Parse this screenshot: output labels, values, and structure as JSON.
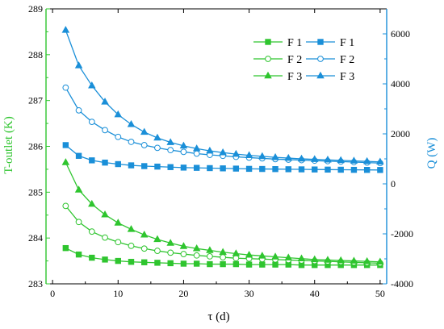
{
  "chart_data": {
    "type": "line",
    "xlabel": "τ (d)",
    "ylabel_left": "T-outlet (K)",
    "ylabel_right": "Q (W)",
    "xlim": [
      -1,
      51
    ],
    "ylim_left": [
      283,
      289
    ],
    "ylim_right": [
      -4000,
      7000
    ],
    "x_ticks": [
      "0",
      "10",
      "20",
      "30",
      "40",
      "50"
    ],
    "y_ticks_left": [
      "283",
      "284",
      "285",
      "286",
      "287",
      "288",
      "289"
    ],
    "y_ticks_right": [
      "-4000",
      "-2000",
      "0",
      "2000",
      "4000",
      "6000"
    ],
    "x_ticks_values": [
      0,
      10,
      20,
      30,
      40,
      50
    ],
    "y_ticks_left_values": [
      283,
      284,
      285,
      286,
      287,
      288,
      289
    ],
    "y_ticks_right_values": [
      -4000,
      -2000,
      0,
      2000,
      4000,
      6000
    ],
    "legend_position": "top-right",
    "colors": {
      "left_axis": "#2fc52f",
      "right_axis": "#1a8fd8"
    },
    "x": [
      2,
      4,
      6,
      8,
      10,
      12,
      14,
      16,
      18,
      20,
      22,
      24,
      26,
      28,
      30,
      32,
      34,
      36,
      38,
      40,
      42,
      44,
      46,
      48,
      50
    ],
    "series": [
      {
        "name": "F 1",
        "axis": "left",
        "marker": "square",
        "filled": true,
        "values": [
          283.78,
          283.64,
          283.57,
          283.53,
          283.5,
          283.48,
          283.47,
          283.46,
          283.45,
          283.44,
          283.44,
          283.43,
          283.43,
          283.43,
          283.42,
          283.42,
          283.42,
          283.42,
          283.41,
          283.41,
          283.41,
          283.41,
          283.41,
          283.41,
          283.41
        ]
      },
      {
        "name": "F 2",
        "axis": "left",
        "marker": "circle",
        "filled": false,
        "values": [
          284.7,
          284.35,
          284.14,
          284.01,
          283.91,
          283.83,
          283.77,
          283.72,
          283.68,
          283.65,
          283.62,
          283.6,
          283.58,
          283.56,
          283.55,
          283.54,
          283.53,
          283.52,
          283.51,
          283.5,
          283.49,
          283.48,
          283.47,
          283.46,
          283.45
        ]
      },
      {
        "name": "F 3",
        "axis": "left",
        "marker": "triangle",
        "filled": true,
        "values": [
          285.65,
          285.05,
          284.74,
          284.51,
          284.33,
          284.19,
          284.07,
          283.97,
          283.89,
          283.82,
          283.77,
          283.73,
          283.69,
          283.66,
          283.63,
          283.61,
          283.59,
          283.57,
          283.55,
          283.53,
          283.52,
          283.51,
          283.5,
          283.49,
          283.48
        ]
      },
      {
        "name": "F 1",
        "axis": "right",
        "marker": "square",
        "filled": true,
        "values": [
          1550,
          1120,
          940,
          850,
          790,
          740,
          710,
          690,
          670,
          650,
          640,
          630,
          620,
          610,
          600,
          595,
          590,
          585,
          580,
          575,
          570,
          565,
          560,
          558,
          555
        ]
      },
      {
        "name": "F 2",
        "axis": "right",
        "marker": "circle",
        "filled": false,
        "values": [
          3850,
          2940,
          2480,
          2150,
          1880,
          1680,
          1550,
          1440,
          1350,
          1280,
          1210,
          1160,
          1120,
          1080,
          1050,
          1020,
          990,
          970,
          950,
          930,
          910,
          890,
          870,
          850,
          830
        ]
      },
      {
        "name": "F 3",
        "axis": "right",
        "marker": "triangle",
        "filled": true,
        "values": [
          6150,
          4730,
          3930,
          3280,
          2770,
          2380,
          2070,
          1840,
          1660,
          1520,
          1410,
          1320,
          1250,
          1190,
          1140,
          1100,
          1060,
          1030,
          1000,
          980,
          960,
          940,
          920,
          900,
          880
        ]
      }
    ]
  }
}
